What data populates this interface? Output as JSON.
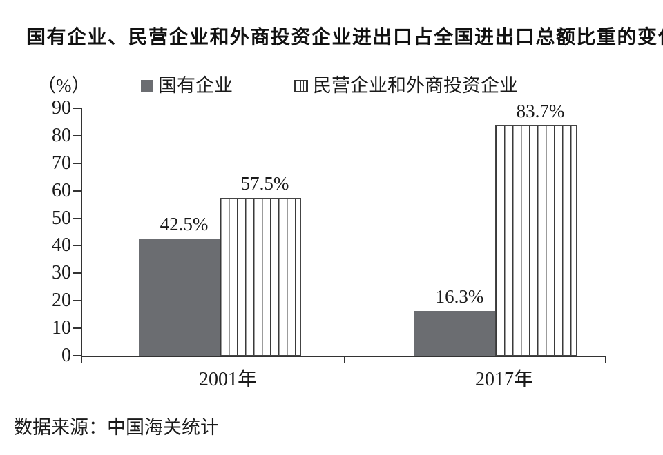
{
  "page": {
    "source_note": "数据来源：中国海关统计"
  },
  "chart_data": {
    "type": "bar",
    "title": "国有企业、民营企业和外商投资企业进出口占全国进出口总额比重的变化",
    "unit_label": "（%）",
    "categories": [
      "2001年",
      "2017年"
    ],
    "series": [
      {
        "name": "国有企业",
        "values": [
          42.5,
          16.3
        ],
        "style": "solid",
        "color": "#6b6d71"
      },
      {
        "name": "民营企业和外商投资企业",
        "values": [
          57.5,
          83.7
        ],
        "style": "hatched-vertical",
        "color": "#ffffff",
        "hatch_color": "#3a3a3a"
      }
    ],
    "data_labels": [
      [
        "42.5%",
        "57.5%"
      ],
      [
        "16.3%",
        "83.7%"
      ]
    ],
    "ylim": [
      0,
      90
    ],
    "ytick_step": 10,
    "yticks": [
      0,
      10,
      20,
      30,
      40,
      50,
      60,
      70,
      80,
      90
    ],
    "xlabel": "",
    "ylabel": "",
    "grid": false,
    "legend_position": "top",
    "source": "数据来源：中国海关统计",
    "axis_color": "#333333",
    "text_color": "#1a1a1a"
  }
}
